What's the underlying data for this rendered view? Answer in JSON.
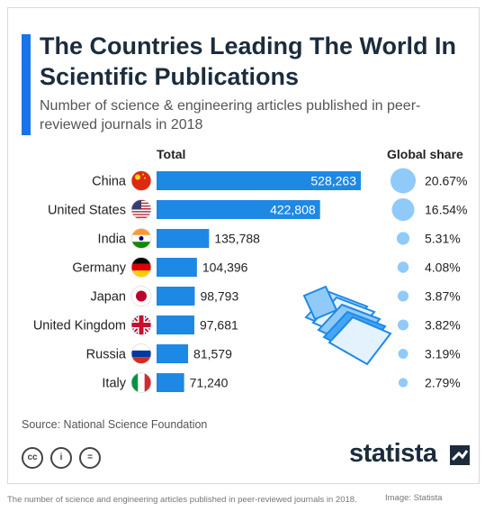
{
  "title": "The Countries Leading The World In Scientific Publications",
  "subtitle": "Number of science & engineering articles published in peer-reviewed journals in 2018",
  "col_total": "Total",
  "col_share": "Global share",
  "source": "Source: National Science Foundation",
  "license_icons": [
    "cc",
    "i",
    "="
  ],
  "logo": "statista",
  "caption": "The number of science and engineering articles published in peer-reviewed journals in 2018.",
  "credit": "Image: Statista",
  "colors": {
    "bar": "#1e88e5",
    "bubble": "#90caf9",
    "accent": "#1a73e8",
    "title": "#1c2c3c"
  },
  "chart_data": {
    "type": "bar",
    "orientation": "horizontal",
    "categories": [
      "China",
      "United States",
      "India",
      "Germany",
      "Japan",
      "United Kingdom",
      "Russia",
      "Italy"
    ],
    "flags": [
      "flag-china-icon",
      "flag-usa-icon",
      "flag-india-icon",
      "flag-germany-icon",
      "flag-japan-icon",
      "flag-uk-icon",
      "flag-russia-icon",
      "flag-italy-icon"
    ],
    "values": [
      528263,
      422808,
      135788,
      104396,
      98793,
      97681,
      81579,
      71240
    ],
    "value_labels": [
      "528,263",
      "422,808",
      "135,788",
      "104,396",
      "98,793",
      "97,681",
      "81,579",
      "71,240"
    ],
    "global_share": [
      20.67,
      16.54,
      5.31,
      4.08,
      3.87,
      3.82,
      3.19,
      2.79
    ],
    "global_share_labels": [
      "20.67%",
      "16.54%",
      "5.31%",
      "4.08%",
      "3.87%",
      "3.82%",
      "3.19%",
      "2.79%"
    ],
    "inside_label_rows": [
      0,
      1
    ]
  }
}
